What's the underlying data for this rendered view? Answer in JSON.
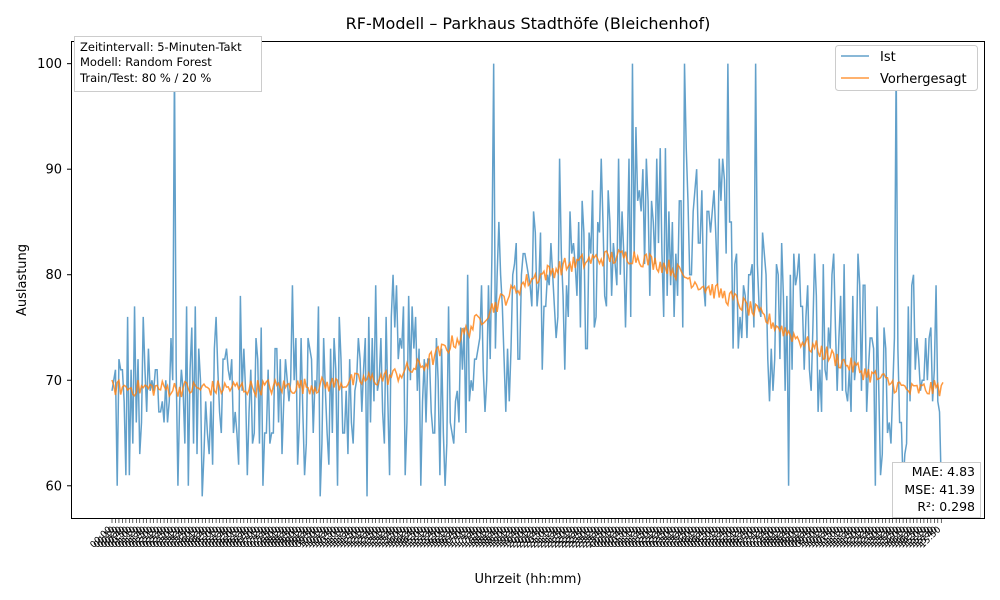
{
  "chart_data": {
    "type": "line",
    "title": "RF-Modell – Parkhaus Stadthöfe (Bleichenhof)",
    "xlabel": "Uhrzeit (hh:mm)",
    "ylabel": "Auslastung",
    "ylim": [
      56.9,
      102.1
    ],
    "yticks": [
      60,
      70,
      80,
      90,
      100
    ],
    "x_tick_note": "dense, overlapping hh:mm tick labels (illegible)",
    "n_points": 480,
    "info_lines": [
      "Zeitintervall: 5-Minuten-Takt",
      "Modell: Random Forest",
      "Train/Test: 80 % / 20 %"
    ],
    "metrics_lines": [
      "MAE: 4.83",
      "MSE: 41.39",
      "R²: 0.298"
    ],
    "legend_position": "top-right",
    "series": [
      {
        "name": "Ist",
        "color": "#1f77b4",
        "trend_points": [
          [
            0,
            67
          ],
          [
            40,
            69
          ],
          [
            80,
            69
          ],
          [
            120,
            68.5
          ],
          [
            160,
            70
          ],
          [
            200,
            70.5
          ],
          [
            230,
            76
          ],
          [
            260,
            80
          ],
          [
            290,
            82
          ],
          [
            320,
            83
          ],
          [
            350,
            82
          ],
          [
            380,
            79
          ],
          [
            420,
            74
          ],
          [
            460,
            69
          ],
          [
            480,
            69
          ]
        ],
        "noise_amplitude": 10,
        "spikes": [
          [
            36,
            100
          ],
          [
            130,
            60
          ],
          [
            192,
            60
          ],
          [
            220,
            100
          ],
          [
            258,
            91
          ],
          [
            300,
            100
          ],
          [
            330,
            100
          ],
          [
            355,
            100
          ],
          [
            371,
            100
          ],
          [
            390,
            60
          ],
          [
            440,
            60
          ],
          [
            452,
            100
          ]
        ]
      },
      {
        "name": "Vorhergesagt",
        "color": "#ff7f0e",
        "trend_points": [
          [
            0,
            69.3
          ],
          [
            40,
            69.2
          ],
          [
            80,
            69.3
          ],
          [
            120,
            69.5
          ],
          [
            160,
            70.3
          ],
          [
            180,
            71.5
          ],
          [
            200,
            74
          ],
          [
            220,
            77
          ],
          [
            240,
            79.5
          ],
          [
            260,
            80.8
          ],
          [
            280,
            81.5
          ],
          [
            300,
            81.8
          ],
          [
            320,
            80.8
          ],
          [
            340,
            79
          ],
          [
            360,
            77.5
          ],
          [
            380,
            75.5
          ],
          [
            400,
            73.5
          ],
          [
            420,
            71.8
          ],
          [
            440,
            70.3
          ],
          [
            460,
            69
          ],
          [
            480,
            69.3
          ]
        ],
        "noise_amplitude": 0.8
      }
    ]
  }
}
